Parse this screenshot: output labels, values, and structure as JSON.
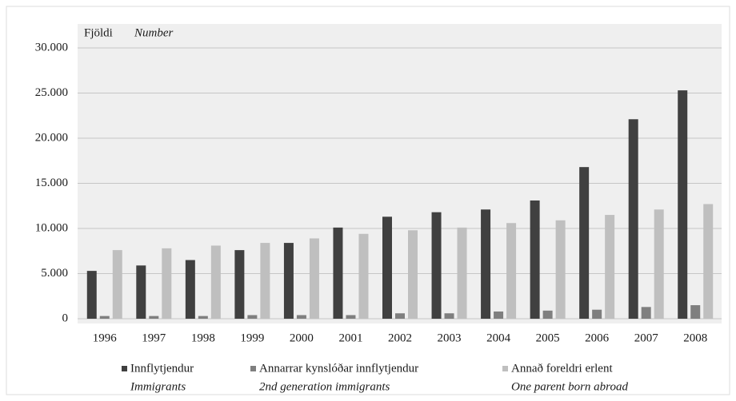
{
  "chart_data": {
    "type": "bar",
    "ylabel": "Fjöldi",
    "ylabel_en": "Number",
    "categories": [
      "1996",
      "1997",
      "1998",
      "1999",
      "2000",
      "2001",
      "2002",
      "2003",
      "2004",
      "2005",
      "2006",
      "2007",
      "2008"
    ],
    "series": [
      {
        "name": "Innflytjendur",
        "name_en": "Immigrants",
        "color": "#404040",
        "values": [
          5300,
          5900,
          6500,
          7600,
          8400,
          10100,
          11300,
          11800,
          12100,
          13100,
          16800,
          22100,
          25300
        ]
      },
      {
        "name": "Annarrar kynslóðar innflytjendur",
        "name_en": "2nd generation immigrants",
        "color": "#7f7f7f",
        "values": [
          300,
          300,
          300,
          400,
          400,
          400,
          600,
          600,
          800,
          900,
          1000,
          1300,
          1500
        ]
      },
      {
        "name": "Annað foreldri erlent",
        "name_en": "One parent born abroad",
        "color": "#bfbfbf",
        "values": [
          7600,
          7800,
          8100,
          8400,
          8900,
          9400,
          9800,
          10100,
          10600,
          10900,
          11500,
          12100,
          12700
        ]
      }
    ],
    "ylim": [
      0,
      30000
    ],
    "yticks": [
      0,
      {
        "value": 5000,
        "label": "5.000"
      },
      {
        "value": 10000,
        "label": "10.000"
      },
      {
        "value": 15000,
        "label": "15.000"
      },
      {
        "value": 20000,
        "label": "20.000"
      },
      {
        "value": 25000,
        "label": "25.000"
      },
      {
        "value": 30000,
        "label": "30.000"
      }
    ],
    "grid": true,
    "legend": "bottom"
  }
}
